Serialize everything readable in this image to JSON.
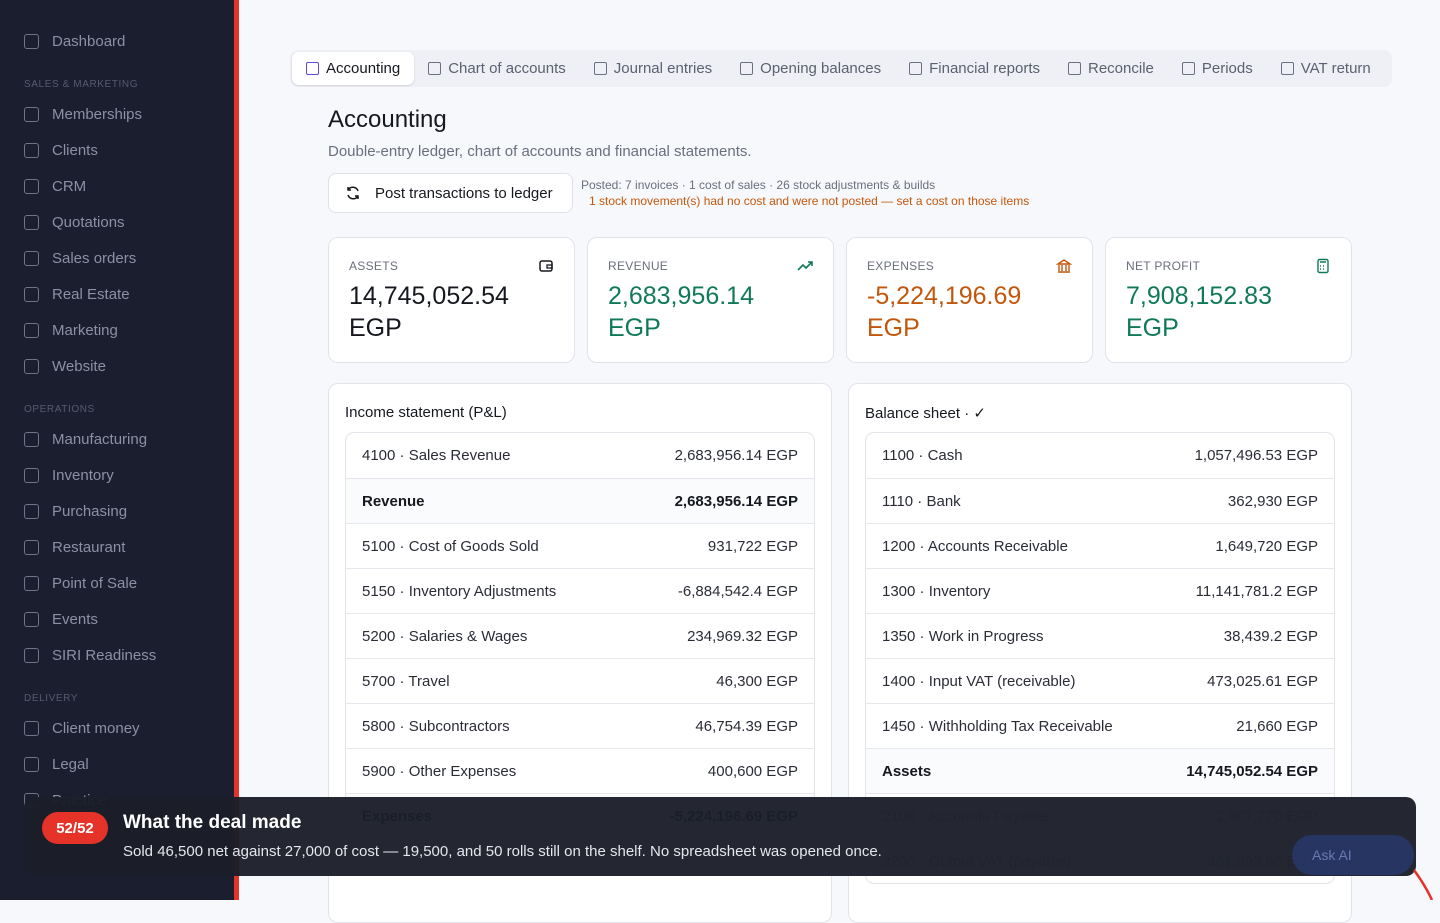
{
  "sidebar": {
    "top": "Dashboard",
    "sections": [
      {
        "title": "SALES & MARKETING",
        "items": [
          "Memberships",
          "Clients",
          "CRM",
          "Quotations",
          "Sales orders",
          "Real Estate",
          "Marketing",
          "Website"
        ]
      },
      {
        "title": "OPERATIONS",
        "items": [
          "Manufacturing",
          "Inventory",
          "Purchasing",
          "Restaurant",
          "Point of Sale",
          "Events",
          "SIRI Readiness"
        ]
      },
      {
        "title": "DELIVERY",
        "items": [
          "Client money",
          "Legal",
          "Practice"
        ]
      }
    ]
  },
  "tabs": {
    "items": [
      "Accounting",
      "Chart of accounts",
      "Journal entries",
      "Opening balances",
      "Financial reports",
      "Reconcile",
      "Periods",
      "VAT return"
    ],
    "active": 0
  },
  "header": {
    "title": "Accounting",
    "subtitle": "Double-entry ledger, chart of accounts and financial statements.",
    "button": "Post transactions to ledger",
    "posted": "Posted: 7 invoices · 1 cost of sales · 26 stock adjustments & builds",
    "warning": "1 stock movement(s) had no cost and were not posted — set a cost on those items"
  },
  "cards": [
    {
      "label": "ASSETS",
      "value": "14,745,052.54 EGP",
      "color": "#16181f"
    },
    {
      "label": "REVENUE",
      "value": "2,683,956.14 EGP",
      "color": "#0f7a55"
    },
    {
      "label": "EXPENSES",
      "value": "-5,224,196.69 EGP",
      "color": "#c2570c"
    },
    {
      "label": "NET PROFIT",
      "value": "7,908,152.83 EGP",
      "color": "#0f7a55"
    }
  ],
  "income": {
    "title": "Income statement (P&L)",
    "rows": [
      [
        "4100 · Sales Revenue",
        "2,683,956.14 EGP"
      ],
      [
        "Revenue",
        "2,683,956.14 EGP"
      ],
      [
        "5100 · Cost of Goods Sold",
        "931,722 EGP"
      ],
      [
        "5150 · Inventory Adjustments",
        "-6,884,542.4 EGP"
      ],
      [
        "5200 · Salaries & Wages",
        "234,969.32 EGP"
      ],
      [
        "5700 · Travel",
        "46,300 EGP"
      ],
      [
        "5800 · Subcontractors",
        "46,754.39 EGP"
      ],
      [
        "5900 · Other Expenses",
        "400,600 EGP"
      ],
      [
        "Expenses",
        "-5,224,196.69 EGP"
      ]
    ],
    "total_rows": [
      1,
      8
    ]
  },
  "balance": {
    "title": "Balance sheet · ✓",
    "rows": [
      [
        "1100 · Cash",
        "1,057,496.53 EGP"
      ],
      [
        "1110 · Bank",
        "362,930 EGP"
      ],
      [
        "1200 · Accounts Receivable",
        "1,649,720 EGP"
      ],
      [
        "1300 · Inventory",
        "11,141,781.2 EGP"
      ],
      [
        "1350 · Work in Progress",
        "38,439.2 EGP"
      ],
      [
        "1400 · Input VAT (receivable)",
        "473,025.61 EGP"
      ],
      [
        "1450 · Withholding Tax Receivable",
        "21,660 EGP"
      ],
      [
        "Assets",
        "14,745,052.54 EGP"
      ],
      [
        "2100 · Accounts Payable",
        "2,907,770 EGP"
      ],
      [
        "2200 · Output VAT (payable)",
        "361,893.86 EGP"
      ]
    ],
    "total_rows": [
      7
    ]
  },
  "toast": {
    "badge": "52/52",
    "title": "What the deal made",
    "body": "Sold 46,500 net against 27,000 of cost — 19,500, and 50 rolls still on the shelf. No spreadsheet was opened once.",
    "button": "Ask AI"
  }
}
